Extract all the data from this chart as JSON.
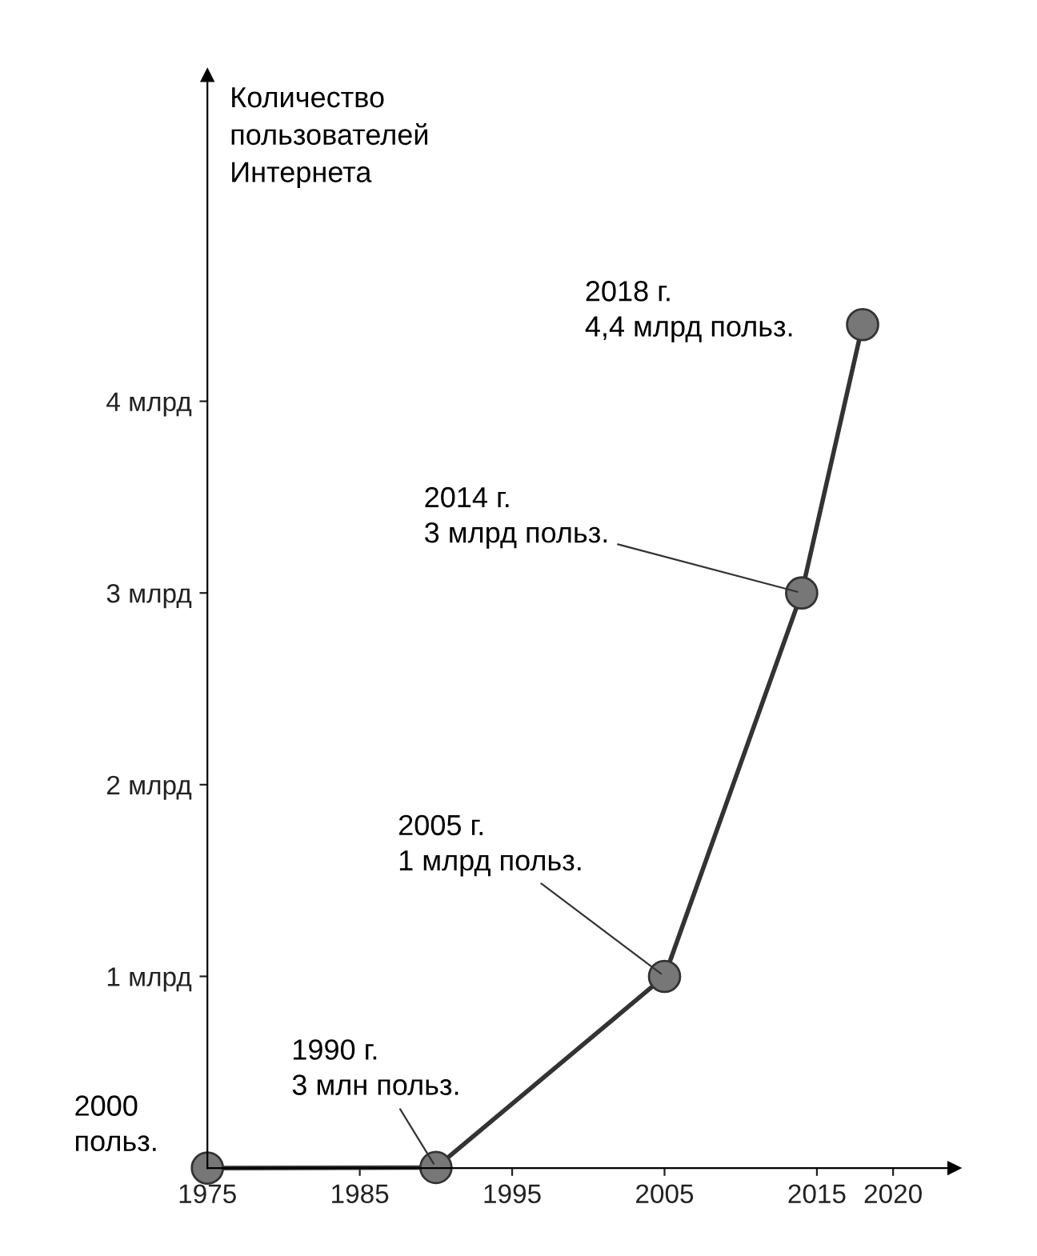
{
  "chart_data": {
    "type": "line",
    "ylabel": "Количество\nпользователей\nИнтернета",
    "x": [
      1975,
      1990,
      2005,
      2014,
      2018
    ],
    "series": [
      {
        "color": "#333333",
        "values": [
          2e-06,
          0.003,
          1,
          3,
          4.4
        ]
      }
    ],
    "xlim": [
      1975,
      2024
    ],
    "xticks": [
      1975,
      1985,
      1995,
      2005,
      2015,
      2020
    ],
    "ylim": [
      0,
      5.7
    ],
    "yticks": [
      {
        "value": 1,
        "label": "1 млрд"
      },
      {
        "value": 2,
        "label": "2 млрд"
      },
      {
        "value": 3,
        "label": "3 млрд"
      },
      {
        "value": 4,
        "label": "4 млрд"
      }
    ],
    "marker": "circle",
    "line_style": "solid",
    "grid": false,
    "legend": false,
    "annotations": [
      {
        "text": "2000\nпольз.",
        "x": 1975,
        "y": 2e-06
      },
      {
        "text": "1990 г.\n3 млн польз.",
        "x": 1990,
        "y": 0.003
      },
      {
        "text": "2005 г.\n1 млрд польз.",
        "x": 2005,
        "y": 1
      },
      {
        "text": "2014 г.\n3 млрд польз.",
        "x": 2014,
        "y": 3
      },
      {
        "text": "2018 г.\n4,4 млрд польз.",
        "x": 2018,
        "y": 4.4
      }
    ]
  }
}
